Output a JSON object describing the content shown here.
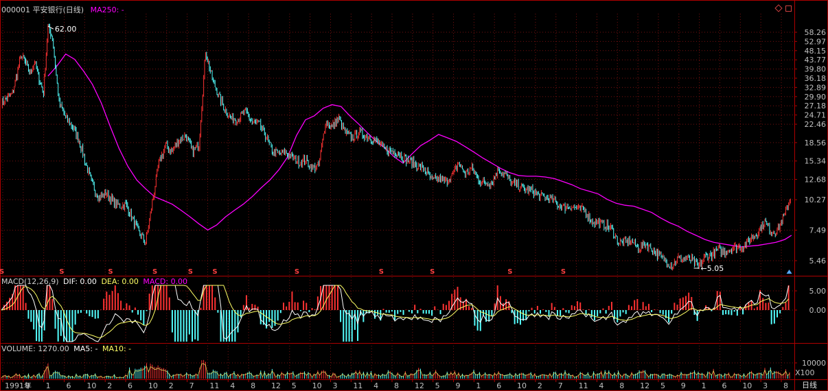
{
  "header": {
    "stock_code": "000001",
    "stock_name": "平安银行(日线)",
    "ma_label": "MA250: -",
    "macd_label": "MACD(12,26,9)",
    "dif_label": "DIF: 0.00",
    "dea_label": "DEA: 0.00",
    "macd_value_label": "MACD: 0.00",
    "volume_label": "VOLUME: 1270.00",
    "ma5_label": "MA5: -",
    "ma10_label": "MA10: -"
  },
  "colors": {
    "up": "#ff3232",
    "down": "#54ffff",
    "ma250": "#ff00ff",
    "dif": "#ffff66",
    "dea": "#ff9900",
    "grid": "#7a1010",
    "axis": "#b00000",
    "text": "#c0c0c0"
  },
  "icons": {
    "top_right": [
      "restore-diamond-icon",
      "maximize-square-icon"
    ],
    "event_marker": "dividend-s-icon",
    "latest_marker": "triangle-up-icon"
  },
  "period_label": "日线",
  "volume_unit": "X100",
  "chart_data": [
    {
      "type": "line",
      "name": "price",
      "y_axis_ticks": [
        5.46,
        7.49,
        10.27,
        12.68,
        15.34,
        18.56,
        22.46,
        24.71,
        27.18,
        29.9,
        32.89,
        36.18,
        39.8,
        43.77,
        48.15,
        52.97,
        58.26
      ],
      "scale": "log",
      "annotations": [
        {
          "label": "62.00",
          "x": "1993-01",
          "value": 62.0
        },
        {
          "label": "5.05",
          "x": "2017-04",
          "value": 5.05
        }
      ],
      "x_labels": [
        "1991年",
        "9",
        "1",
        "6",
        "10",
        "2",
        "6",
        "10",
        "2",
        "7",
        "11",
        "4",
        "8",
        "12",
        "5",
        "10",
        "3",
        "11",
        "4",
        "8",
        "12",
        "5",
        "9",
        "1",
        "6",
        "10",
        "2",
        "7",
        "11",
        "4",
        "8",
        "12",
        "5",
        "9",
        "1",
        "6",
        "10",
        "3",
        "8"
      ],
      "series": [
        {
          "name": "close",
          "x": [
            "1991-04",
            "1991-09",
            "1992-01",
            "1992-03",
            "1992-05",
            "1992-07",
            "1992-09",
            "1992-11",
            "1993-01",
            "1993-03",
            "1993-06",
            "1993-09",
            "1993-12",
            "1994-03",
            "1994-06",
            "1994-09",
            "1994-12",
            "1995-03",
            "1995-06",
            "1995-09",
            "1995-12",
            "1996-03",
            "1996-06",
            "1996-09",
            "1996-12",
            "1997-03",
            "1997-06",
            "1997-09",
            "1997-12",
            "1998-03",
            "1998-06",
            "1998-09",
            "1998-12",
            "1999-03",
            "1999-06",
            "1999-09",
            "1999-12",
            "2000-03",
            "2000-06",
            "2000-09",
            "2000-12",
            "2001-03",
            "2001-06",
            "2001-09",
            "2001-12",
            "2002-03",
            "2002-06",
            "2002-09",
            "2002-12",
            "2003-03",
            "2003-06",
            "2003-09",
            "2003-12",
            "2004-03",
            "2004-06",
            "2004-09",
            "2004-12",
            "2005-03",
            "2005-06",
            "2005-09",
            "2005-12",
            "2006-03",
            "2006-06",
            "2006-09",
            "2006-12",
            "2007-03",
            "2007-06",
            "2007-09",
            "2007-12",
            "2008-03",
            "2008-06",
            "2008-09",
            "2008-12",
            "2009-03",
            "2009-06",
            "2009-09",
            "2009-12",
            "2010-03",
            "2010-06",
            "2010-09",
            "2010-12",
            "2011-03",
            "2011-06",
            "2011-09",
            "2011-12",
            "2012-03",
            "2012-06",
            "2012-09",
            "2012-12",
            "2013-03",
            "2013-06",
            "2013-09",
            "2013-12",
            "2014-03",
            "2014-06",
            "2014-09",
            "2014-12",
            "2015-03",
            "2015-06",
            "2015-09",
            "2015-12",
            "2016-03",
            "2016-06",
            "2016-09",
            "2016-12",
            "2017-03",
            "2017-06",
            "2017-09",
            "2017-12",
            "2018-03",
            "2018-06",
            "2018-09",
            "2018-12",
            "2019-03",
            "2019-06",
            "2019-09",
            "2019-12",
            "2020-03",
            "2020-06",
            "2020-09",
            "2020-12"
          ],
          "values": [
            28,
            31,
            46,
            42,
            38,
            43,
            36,
            31,
            62,
            55,
            28,
            24,
            22,
            19,
            15,
            12,
            10.5,
            11,
            10.2,
            9.6,
            9.8,
            8.4,
            7.3,
            6.6,
            10,
            15,
            18,
            17,
            19,
            20,
            17,
            18,
            48,
            36,
            30,
            26,
            23.5,
            24,
            25.5,
            23,
            22.5,
            20,
            17,
            16.5,
            16.8,
            16,
            15.2,
            15.5,
            14.2,
            14.6,
            23,
            22,
            23.8,
            20.5,
            19.5,
            20.6,
            20,
            19.4,
            18.5,
            17.2,
            17,
            16.7,
            15.6,
            15.1,
            14.6,
            14,
            12.5,
            12.8,
            12.4,
            13.1,
            15,
            13.5,
            14.2,
            12.6,
            12.2,
            12.3,
            14.2,
            13.3,
            12.2,
            11.9,
            11.4,
            11.3,
            10.7,
            10.5,
            10.3,
            9.7,
            9.5,
            9.6,
            9.3,
            9.2,
            8.2,
            8.1,
            7.9,
            7.6,
            6.6,
            6.6,
            6.7,
            6.2,
            6.5,
            6.2,
            5.8,
            5.5,
            5.2,
            5.6,
            5.6,
            5.5,
            5.1,
            5.7,
            5.8,
            6.1,
            6.0,
            6.2,
            6.3,
            6.4,
            6.9,
            7.4,
            8.2,
            7.3,
            7.6,
            8.8,
            10.8
          ]
        },
        {
          "name": "MA250",
          "x": [
            "1993-01",
            "1993-05",
            "1993-09",
            "1994-01",
            "1994-05",
            "1994-09",
            "1995-01",
            "1995-05",
            "1995-09",
            "1996-01",
            "1996-05",
            "1996-09",
            "1997-01",
            "1997-05",
            "1997-09",
            "1998-01",
            "1998-05",
            "1998-09",
            "1999-01",
            "1999-05",
            "1999-09",
            "2000-01",
            "2000-05",
            "2000-09",
            "2001-01",
            "2001-05",
            "2001-09",
            "2002-01",
            "2002-05",
            "2002-09",
            "2003-01",
            "2003-05",
            "2003-09",
            "2004-01",
            "2004-05",
            "2004-09",
            "2005-01",
            "2005-05",
            "2005-09",
            "2006-01",
            "2006-05",
            "2006-09",
            "2007-01",
            "2007-05",
            "2007-09",
            "2008-01",
            "2008-05",
            "2008-09",
            "2009-01",
            "2009-05",
            "2009-09",
            "2010-01",
            "2010-05",
            "2010-09",
            "2011-01",
            "2011-05",
            "2011-09",
            "2012-01",
            "2012-05",
            "2012-09",
            "2013-01",
            "2013-05",
            "2013-09",
            "2014-01",
            "2014-05",
            "2014-09",
            "2015-01",
            "2015-05",
            "2015-09",
            "2016-01",
            "2016-05",
            "2016-09",
            "2017-01",
            "2017-05",
            "2017-09",
            "2018-01",
            "2018-05",
            "2018-09",
            "2019-01",
            "2019-05",
            "2019-09",
            "2020-01",
            "2020-05",
            "2020-09",
            "2020-12"
          ],
          "values": [
            37,
            41,
            46.5,
            44,
            39,
            34,
            28,
            22,
            17.5,
            14.5,
            12.6,
            11.5,
            10.6,
            10.2,
            9.8,
            9.2,
            8.6,
            8.0,
            7.5,
            7.9,
            8.6,
            9.2,
            9.8,
            10.6,
            11.6,
            12.6,
            14.0,
            16.0,
            20.0,
            23.5,
            24.5,
            26.5,
            27.5,
            27,
            24.5,
            22.5,
            20.5,
            18.8,
            17.5,
            16.0,
            15.0,
            16.5,
            18,
            19,
            20.2,
            19.5,
            18.8,
            17.8,
            16.8,
            15.8,
            15.0,
            14.2,
            13.6,
            13.2,
            13.1,
            13.1,
            13.0,
            12.8,
            12.4,
            12.0,
            11.5,
            11.2,
            10.9,
            10.3,
            9.9,
            9.7,
            9.6,
            9.3,
            9.0,
            8.5,
            8.1,
            7.8,
            7.4,
            7.1,
            6.8,
            6.6,
            6.5,
            6.4,
            6.3,
            6.35,
            6.4,
            6.5,
            6.6,
            6.8,
            7.1
          ]
        }
      ],
      "event_markers_x": [
        "1991-04",
        "1993-07",
        "1995-05",
        "1997-01",
        "1998-05",
        "1999-04",
        "2002-05",
        "2005-07",
        "2007-06",
        "2010-05",
        "2012-05"
      ],
      "latest_marker_x": "2020-11"
    },
    {
      "type": "bar",
      "name": "MACD",
      "y_axis_ticks": [
        5.0,
        0.0
      ],
      "series": [
        {
          "name": "DIF",
          "values": []
        },
        {
          "name": "DEA",
          "values": []
        },
        {
          "name": "MACD",
          "values": []
        }
      ]
    },
    {
      "type": "bar",
      "name": "VOLUME",
      "y_axis_ticks": [
        10000
      ],
      "series": [
        {
          "name": "VOLUME",
          "values": []
        },
        {
          "name": "MA5",
          "values": []
        },
        {
          "name": "MA10",
          "values": []
        }
      ]
    }
  ]
}
